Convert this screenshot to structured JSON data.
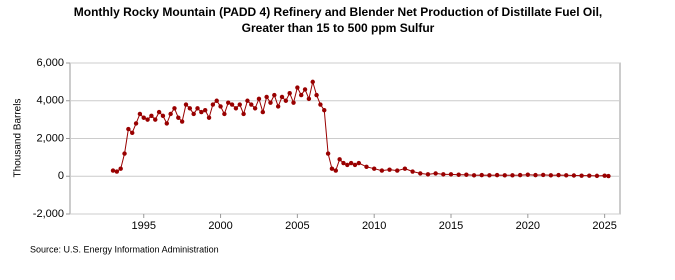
{
  "chart_data": {
    "type": "line",
    "title": [
      "Monthly Rocky Mountain (PADD 4) Refinery and Blender Net Production of Distillate Fuel Oil,",
      "Greater than 15 to 500 ppm Sulfur"
    ],
    "y_label": "Thousand Barrels",
    "source": "Source: U.S. Energy Information Administration",
    "xlim": [
      1990.2,
      2026
    ],
    "xticks": [
      1995,
      2000,
      2005,
      2010,
      2015,
      2020,
      2025
    ],
    "ylim": [
      -2000,
      6000
    ],
    "yticks": [
      {
        "value": -2000,
        "label": "-2,000"
      },
      0,
      {
        "value": 2000,
        "label": "2,000"
      },
      {
        "value": 4000,
        "label": "4,000"
      },
      {
        "value": 6000,
        "label": "6,000"
      }
    ],
    "grid": true,
    "series": [
      {
        "color": "#990000",
        "x": [
          1993.0,
          1993.25,
          1993.5,
          1993.75,
          1994.0,
          1994.25,
          1994.5,
          1994.75,
          1995.0,
          1995.25,
          1995.5,
          1995.75,
          1996.0,
          1996.25,
          1996.5,
          1996.75,
          1997.0,
          1997.25,
          1997.5,
          1997.75,
          1998.0,
          1998.25,
          1998.5,
          1998.75,
          1999.0,
          1999.25,
          1999.5,
          1999.75,
          2000.0,
          2000.25,
          2000.5,
          2000.75,
          2001.0,
          2001.25,
          2001.5,
          2001.75,
          2002.0,
          2002.25,
          2002.5,
          2002.75,
          2003.0,
          2003.25,
          2003.5,
          2003.75,
          2004.0,
          2004.25,
          2004.5,
          2004.75,
          2005.0,
          2005.25,
          2005.5,
          2005.75,
          2006.0,
          2006.25,
          2006.5,
          2006.75,
          2007.0,
          2007.25,
          2007.5,
          2007.75,
          2008.0,
          2008.25,
          2008.5,
          2008.75,
          2009.0,
          2009.5,
          2010.0,
          2010.5,
          2011.0,
          2011.5,
          2012.0,
          2012.5,
          2013.0,
          2013.5,
          2014.0,
          2014.5,
          2015.0,
          2015.5,
          2016.0,
          2016.5,
          2017.0,
          2017.5,
          2018.0,
          2018.5,
          2019.0,
          2019.5,
          2020.0,
          2020.5,
          2021.0,
          2021.5,
          2022.0,
          2022.5,
          2023.0,
          2023.5,
          2024.0,
          2024.5,
          2025.0,
          2025.25
        ],
        "values": [
          300,
          250,
          400,
          1200,
          2500,
          2300,
          2800,
          3300,
          3100,
          3000,
          3200,
          3000,
          3400,
          3200,
          2800,
          3300,
          3600,
          3100,
          2900,
          3800,
          3600,
          3300,
          3600,
          3400,
          3500,
          3100,
          3800,
          4000,
          3700,
          3300,
          3900,
          3800,
          3600,
          3800,
          3300,
          4000,
          3800,
          3600,
          4100,
          3400,
          4200,
          3900,
          4300,
          3700,
          4200,
          4000,
          4400,
          3900,
          4700,
          4300,
          4600,
          4100,
          5000,
          4300,
          3800,
          3500,
          1200,
          400,
          300,
          900,
          700,
          600,
          700,
          600,
          700,
          500,
          400,
          300,
          350,
          300,
          400,
          250,
          150,
          100,
          150,
          100,
          100,
          80,
          80,
          50,
          60,
          50,
          60,
          50,
          50,
          60,
          80,
          60,
          70,
          50,
          60,
          50,
          40,
          30,
          30,
          20,
          30,
          10
        ]
      }
    ]
  }
}
